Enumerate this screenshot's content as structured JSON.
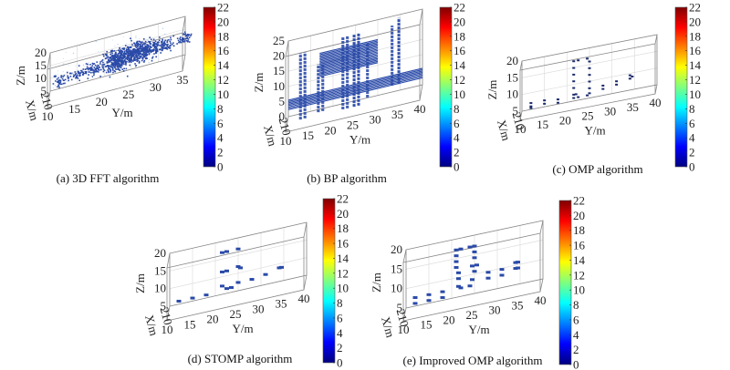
{
  "figure": {
    "colormap": "jet",
    "colorbar_stops": [
      "#00007f",
      "#0000ff",
      "#007fff",
      "#00ffff",
      "#7fff7f",
      "#ffff00",
      "#ff7f00",
      "#ff0000",
      "#7f0000"
    ],
    "point_color": "#2a4aa8",
    "point_color_dark": "#1b2a6b"
  },
  "chart_data": [
    {
      "id": "a",
      "type": "scatter",
      "title": "(a) 3D FFT algorithm",
      "xlabel": "Y/m",
      "ylabel": "Z/m",
      "depth_label": "X/m",
      "x_ticks": [
        "10",
        "15",
        "20",
        "25",
        "30",
        "35"
      ],
      "x_range": [
        10,
        35
      ],
      "z_ticks": [
        "5",
        "10",
        "15",
        "20"
      ],
      "z_range": [
        5,
        20
      ],
      "depth_ticks": [
        "2",
        "10"
      ],
      "colorbar": {
        "ticks": [
          "0",
          "2",
          "4",
          "6",
          "8",
          "10",
          "12",
          "14",
          "16",
          "18",
          "20",
          "22"
        ],
        "range": [
          0,
          22
        ]
      },
      "style": "dense-cloud",
      "clusters": [
        {
          "y": 11,
          "z": 10,
          "spread_y": 1.2,
          "spread_z": 1.2,
          "n": 40
        },
        {
          "y": 14,
          "z": 10.5,
          "spread_y": 1.5,
          "spread_z": 1.2,
          "n": 50
        },
        {
          "y": 17,
          "z": 11,
          "spread_y": 1.5,
          "spread_z": 1.5,
          "n": 70
        },
        {
          "y": 21,
          "z": 12,
          "spread_y": 2.0,
          "spread_z": 3.0,
          "n": 260
        },
        {
          "y": 24,
          "z": 13,
          "spread_y": 2.2,
          "spread_z": 3.2,
          "n": 320
        },
        {
          "y": 27,
          "z": 13,
          "spread_y": 2.0,
          "spread_z": 2.5,
          "n": 200
        },
        {
          "y": 30,
          "z": 13,
          "spread_y": 1.5,
          "spread_z": 1.5,
          "n": 80
        },
        {
          "y": 34,
          "z": 13.5,
          "spread_y": 1.2,
          "spread_z": 1.0,
          "n": 60
        }
      ]
    },
    {
      "id": "b",
      "type": "scatter",
      "title": "(b) BP algorithm",
      "xlabel": "Y/m",
      "ylabel": "Z/m",
      "depth_label": "X/m",
      "x_ticks": [
        "10",
        "15",
        "20",
        "25",
        "30",
        "35",
        "40"
      ],
      "x_range": [
        10,
        40
      ],
      "z_ticks": [
        "0",
        "5",
        "10",
        "15",
        "20",
        "25"
      ],
      "z_range": [
        0,
        25
      ],
      "depth_ticks": [
        "2",
        "10"
      ],
      "colorbar": {
        "ticks": [
          "0",
          "2",
          "4",
          "6",
          "8",
          "10",
          "12",
          "14",
          "16",
          "18",
          "20",
          "22"
        ],
        "range": [
          0,
          22
        ]
      },
      "style": "stripes",
      "horizontal_bands": [
        {
          "y0": 10,
          "y1": 40,
          "z0": 3.5,
          "z1": 7
        },
        {
          "y0": 17,
          "y1": 30,
          "z0": 12,
          "z1": 20
        }
      ],
      "vertical_streaks": [
        {
          "y": 12.5,
          "z0": 0,
          "z1": 20
        },
        {
          "y": 13.5,
          "z0": 0,
          "z1": 20
        },
        {
          "y": 16.5,
          "z0": 1,
          "z1": 15
        },
        {
          "y": 17.5,
          "z0": 1,
          "z1": 15
        },
        {
          "y": 22,
          "z0": 0,
          "z1": 22
        },
        {
          "y": 23,
          "z0": 0,
          "z1": 22
        },
        {
          "y": 24.5,
          "z0": 0,
          "z1": 22
        },
        {
          "y": 25.5,
          "z0": 0,
          "z1": 22
        },
        {
          "y": 27.5,
          "z0": 2,
          "z1": 18
        },
        {
          "y": 33,
          "z0": 4,
          "z1": 22
        },
        {
          "y": 34.5,
          "z0": 4,
          "z1": 24
        }
      ]
    },
    {
      "id": "c",
      "type": "scatter",
      "title": "(c) OMP algorithm",
      "xlabel": "Y/m",
      "ylabel": "Z/m",
      "depth_label": "X/m",
      "x_ticks": [
        "10",
        "15",
        "20",
        "25",
        "30",
        "35",
        "40"
      ],
      "x_range": [
        10,
        40
      ],
      "z_ticks": [
        "5",
        "10",
        "15",
        "20"
      ],
      "z_range": [
        5,
        20
      ],
      "depth_ticks": [
        "2",
        "10"
      ],
      "colorbar": {
        "ticks": [
          "0",
          "2",
          "4",
          "6",
          "8",
          "10",
          "12",
          "14",
          "16",
          "18",
          "20",
          "22"
        ],
        "range": [
          0,
          22
        ]
      },
      "style": "dark-sparse",
      "points": [
        [
          12,
          8
        ],
        [
          12,
          7
        ],
        [
          12,
          6.5
        ],
        [
          15,
          8
        ],
        [
          15,
          7
        ],
        [
          18,
          7.5
        ],
        [
          18,
          6.5
        ],
        [
          21.5,
          18
        ],
        [
          21.5,
          16
        ],
        [
          21.5,
          14
        ],
        [
          21.5,
          12
        ],
        [
          21.5,
          10
        ],
        [
          21.5,
          8
        ],
        [
          21.5,
          7
        ],
        [
          22.5,
          18
        ],
        [
          22,
          8
        ],
        [
          22.5,
          7
        ],
        [
          24.5,
          18
        ],
        [
          25,
          17
        ],
        [
          25,
          15
        ],
        [
          25,
          13
        ],
        [
          25,
          11
        ],
        [
          25,
          9
        ],
        [
          25,
          7.5
        ],
        [
          24.5,
          7
        ],
        [
          28,
          9
        ],
        [
          28,
          8
        ],
        [
          31,
          9.5
        ],
        [
          31,
          8.5
        ],
        [
          34,
          10.5
        ],
        [
          34,
          9.5
        ],
        [
          34.5,
          10
        ]
      ]
    },
    {
      "id": "d",
      "type": "scatter",
      "title": "(d) STOMP algorithm",
      "xlabel": "Y/m",
      "ylabel": "Z/m",
      "depth_label": "X/m",
      "x_ticks": [
        "10",
        "15",
        "20",
        "25",
        "30",
        "35",
        "40"
      ],
      "x_range": [
        10,
        40
      ],
      "z_ticks": [
        "5",
        "10",
        "15",
        "20"
      ],
      "z_range": [
        5,
        20
      ],
      "depth_ticks": [
        "2",
        "10"
      ],
      "colorbar": {
        "ticks": [
          "0",
          "2",
          "4",
          "6",
          "8",
          "10",
          "12",
          "14",
          "16",
          "18",
          "20",
          "22"
        ],
        "range": [
          0,
          22
        ]
      },
      "style": "sparse",
      "points": [
        [
          12,
          7.5
        ],
        [
          15,
          7.5
        ],
        [
          18,
          7.5
        ],
        [
          21.5,
          18.5
        ],
        [
          22.5,
          18.5
        ],
        [
          25,
          18.5
        ],
        [
          21.5,
          13
        ],
        [
          22.5,
          13
        ],
        [
          25,
          13.5
        ],
        [
          25.5,
          13
        ],
        [
          21.5,
          9
        ],
        [
          22.5,
          8
        ],
        [
          23.5,
          8
        ],
        [
          25,
          9
        ],
        [
          28,
          9
        ],
        [
          31,
          9.5
        ],
        [
          34,
          10.5
        ],
        [
          34.5,
          10.5
        ]
      ]
    },
    {
      "id": "e",
      "type": "scatter",
      "title": "(e) Improved OMP algorithm",
      "xlabel": "Y/m",
      "ylabel": "Z/m",
      "depth_label": "X/m",
      "x_ticks": [
        "10",
        "15",
        "20",
        "25",
        "30",
        "35",
        "40"
      ],
      "x_range": [
        10,
        40
      ],
      "z_ticks": [
        "5",
        "10",
        "15",
        "20"
      ],
      "z_range": [
        5,
        20
      ],
      "depth_ticks": [
        "2",
        "10"
      ],
      "colorbar": {
        "ticks": [
          "0",
          "2",
          "4",
          "6",
          "8",
          "10",
          "12",
          "14",
          "16",
          "18",
          "20",
          "22"
        ],
        "range": [
          0,
          22
        ]
      },
      "style": "sparse",
      "points": [
        [
          12,
          8.5
        ],
        [
          12,
          7
        ],
        [
          15,
          8.5
        ],
        [
          15,
          7
        ],
        [
          18,
          8.5
        ],
        [
          18,
          7
        ],
        [
          21,
          18.5
        ],
        [
          22,
          18.5
        ],
        [
          21,
          17
        ],
        [
          21,
          15.5
        ],
        [
          21,
          14
        ],
        [
          21.5,
          12.5
        ],
        [
          21.5,
          11
        ],
        [
          21.5,
          9
        ],
        [
          22,
          8.5
        ],
        [
          24,
          18.5
        ],
        [
          25,
          18.5
        ],
        [
          25,
          17
        ],
        [
          25,
          15.5
        ],
        [
          24.5,
          13.5
        ],
        [
          25.5,
          13.5
        ],
        [
          25,
          12
        ],
        [
          24.5,
          10
        ],
        [
          24,
          8.5
        ],
        [
          28,
          11
        ],
        [
          28,
          9.5
        ],
        [
          31,
          11
        ],
        [
          31,
          9.5
        ],
        [
          34,
          12
        ],
        [
          34.5,
          12
        ],
        [
          34,
          10.5
        ],
        [
          34.5,
          10.5
        ]
      ]
    }
  ]
}
